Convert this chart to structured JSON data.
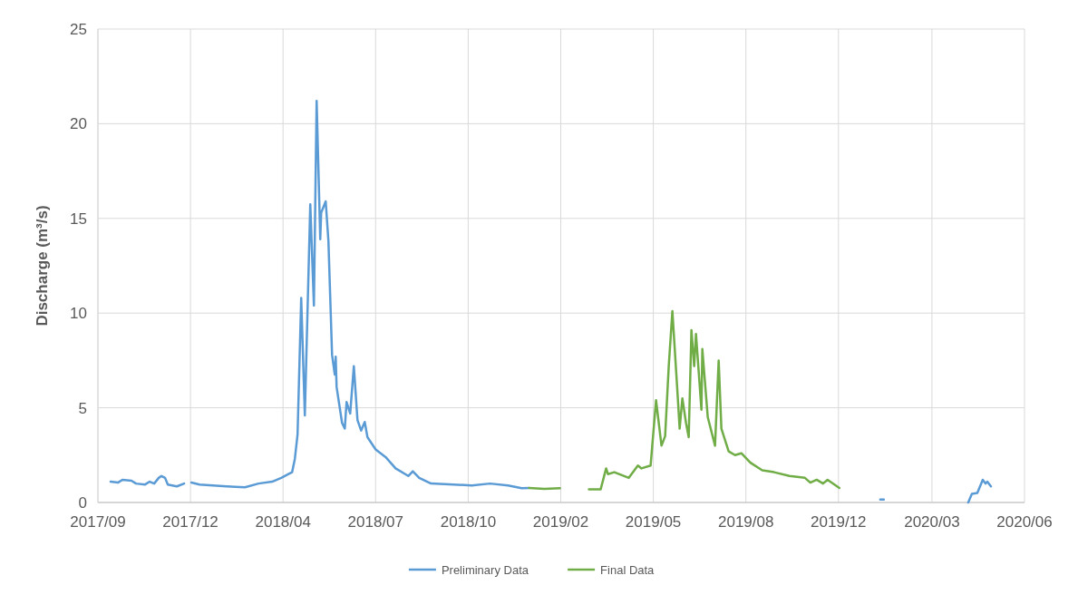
{
  "chart_data": {
    "type": "line",
    "ylabel": "Discharge (m³/s)",
    "xlim": [
      "2017-09-09",
      "2020-06-26"
    ],
    "xticks": [
      {
        "value": "2017-09-09",
        "label": "2017/09"
      },
      {
        "value": "2017-12-20",
        "label": "2017/12"
      },
      {
        "value": "2018-04-01",
        "label": "2018/04"
      },
      {
        "value": "2018-07-12",
        "label": "2018/07"
      },
      {
        "value": "2018-10-22",
        "label": "2018/10"
      },
      {
        "value": "2019-02-01",
        "label": "2019/02"
      },
      {
        "value": "2019-05-14",
        "label": "2019/05"
      },
      {
        "value": "2019-08-24",
        "label": "2019/08"
      },
      {
        "value": "2019-12-04",
        "label": "2019/12"
      },
      {
        "value": "2020-03-16",
        "label": "2020/03"
      },
      {
        "value": "2020-06-26",
        "label": "2020/06"
      }
    ],
    "ylim": [
      0,
      25
    ],
    "yticks": [
      0,
      5,
      10,
      15,
      20,
      25
    ],
    "grid": true,
    "legend": "bottom",
    "line_style": "solid",
    "marker": "none",
    "series": [
      {
        "name": "Preliminary Data",
        "color": "#5b9bd5",
        "x": [
          "2017-09-23",
          "2017-10-01",
          "2017-10-06",
          "2017-10-16",
          "2017-10-21",
          "2017-10-31",
          "2017-11-05",
          "2017-11-10",
          "2017-11-15",
          "2017-11-18",
          "2017-11-22",
          "2017-11-25",
          "2017-12-05",
          "2017-12-13",
          "2017-12-17",
          "2017-12-21",
          "2017-12-30",
          "2018-01-14",
          "2018-01-29",
          "2018-02-18",
          "2018-03-05",
          "2018-03-20",
          "2018-03-30",
          "2018-04-07",
          "2018-04-11",
          "2018-04-14",
          "2018-04-17",
          "2018-04-21",
          "2018-04-25",
          "2018-05-01",
          "2018-05-05",
          "2018-05-08",
          "2018-05-12",
          "2018-05-13",
          "2018-05-18",
          "2018-05-21",
          "2018-05-25",
          "2018-05-28",
          "2018-05-29",
          "2018-05-30",
          "2018-06-05",
          "2018-06-08",
          "2018-06-10",
          "2018-06-14",
          "2018-06-18",
          "2018-06-22",
          "2018-06-26",
          "2018-06-30",
          "2018-07-03",
          "2018-07-12",
          "2018-07-23",
          "2018-08-03",
          "2018-08-17",
          "2018-08-22",
          "2018-08-29",
          "2018-09-11",
          "2018-10-06",
          "2018-10-26",
          "2018-11-15",
          "2018-12-05",
          "2018-12-20",
          "2018-12-28",
          "2019-01-10",
          "2020-01-19",
          "2020-01-23",
          "2020-04-01",
          "2020-04-25",
          "2020-04-29",
          "2020-05-05",
          "2020-05-11",
          "2020-05-14",
          "2020-05-16",
          "2020-05-20"
        ],
        "values": [
          1.1,
          1.05,
          1.2,
          1.15,
          1.0,
          0.95,
          1.1,
          1.0,
          1.3,
          1.4,
          1.3,
          0.95,
          0.85,
          1.0,
          null,
          1.05,
          0.95,
          0.9,
          0.85,
          0.8,
          1.0,
          1.1,
          1.3,
          1.5,
          1.6,
          2.3,
          3.6,
          10.8,
          4.6,
          15.75,
          10.4,
          21.2,
          13.9,
          15.3,
          15.9,
          13.8,
          7.8,
          6.75,
          7.7,
          6.1,
          4.2,
          3.9,
          5.3,
          4.7,
          7.2,
          4.35,
          3.8,
          4.25,
          3.45,
          2.8,
          2.4,
          1.8,
          1.4,
          1.65,
          1.3,
          1.0,
          0.95,
          0.9,
          1.0,
          0.9,
          0.75,
          0.77,
          null,
          0.15,
          0.15,
          null,
          0,
          0.45,
          0.5,
          1.2,
          1.0,
          1.1,
          0.85
        ]
      },
      {
        "name": "Final Data",
        "color": "#70ad47",
        "x": [
          "2018-12-28",
          "2019-01-14",
          "2019-01-31",
          "2019-02-15",
          "2019-03-04",
          "2019-03-17",
          "2019-03-23",
          "2019-03-25",
          "2019-04-01",
          "2019-04-17",
          "2019-04-27",
          "2019-05-01",
          "2019-05-11",
          "2019-05-17",
          "2019-05-23",
          "2019-05-27",
          "2019-05-31",
          "2019-06-04",
          "2019-06-10",
          "2019-06-12",
          "2019-06-15",
          "2019-06-19",
          "2019-06-22",
          "2019-06-25",
          "2019-06-28",
          "2019-06-30",
          "2019-07-06",
          "2019-07-07",
          "2019-07-13",
          "2019-07-21",
          "2019-07-25",
          "2019-07-28",
          "2019-08-05",
          "2019-08-12",
          "2019-08-19",
          "2019-08-29",
          "2019-09-11",
          "2019-09-24",
          "2019-10-11",
          "2019-10-28",
          "2019-11-03",
          "2019-11-10",
          "2019-11-17",
          "2019-11-22",
          "2019-12-05"
        ],
        "values": [
          0.77,
          0.72,
          0.75,
          null,
          0.7,
          0.7,
          1.8,
          1.5,
          1.6,
          1.3,
          1.95,
          1.8,
          1.95,
          5.4,
          3.0,
          3.5,
          7.2,
          10.1,
          5.5,
          3.9,
          5.5,
          4.2,
          3.45,
          9.1,
          7.2,
          8.9,
          4.9,
          8.1,
          4.5,
          3.0,
          7.5,
          3.9,
          2.7,
          2.5,
          2.6,
          2.1,
          1.7,
          1.6,
          1.4,
          1.3,
          1.05,
          1.2,
          1.0,
          1.2,
          0.77
        ]
      }
    ]
  }
}
